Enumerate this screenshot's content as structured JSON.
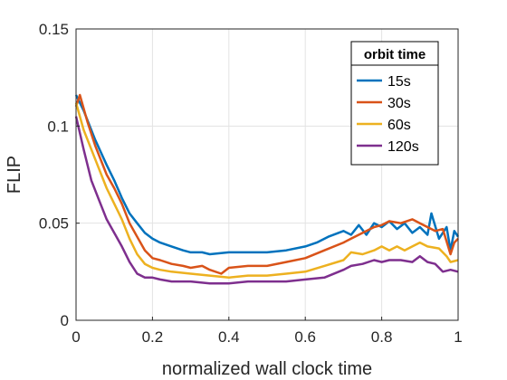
{
  "chart_data": {
    "type": "line",
    "title": "",
    "xlabel": "normalized wall clock time",
    "ylabel": "FLIP",
    "xlim": [
      0,
      1
    ],
    "ylim": [
      0,
      0.15
    ],
    "xticks": [
      0,
      0.2,
      0.4,
      0.6,
      0.8,
      1
    ],
    "xtick_labels": [
      "0",
      "0.2",
      "0.4",
      "0.6",
      "0.8",
      "1"
    ],
    "yticks": [
      0,
      0.05,
      0.1,
      0.15
    ],
    "ytick_labels": [
      "0",
      "0.05",
      "0.1",
      "0.15"
    ],
    "grid": true,
    "legend": {
      "title": "orbit time",
      "position": "top-right"
    },
    "series": [
      {
        "name": "15s",
        "color": "#0072BD",
        "points": [
          [
            0,
            0.116
          ],
          [
            0.02,
            0.108
          ],
          [
            0.05,
            0.093
          ],
          [
            0.08,
            0.08
          ],
          [
            0.1,
            0.072
          ],
          [
            0.12,
            0.063
          ],
          [
            0.14,
            0.055
          ],
          [
            0.16,
            0.05
          ],
          [
            0.18,
            0.045
          ],
          [
            0.2,
            0.042
          ],
          [
            0.22,
            0.04
          ],
          [
            0.25,
            0.038
          ],
          [
            0.28,
            0.036
          ],
          [
            0.3,
            0.035
          ],
          [
            0.33,
            0.035
          ],
          [
            0.35,
            0.034
          ],
          [
            0.4,
            0.035
          ],
          [
            0.45,
            0.035
          ],
          [
            0.5,
            0.035
          ],
          [
            0.55,
            0.036
          ],
          [
            0.6,
            0.038
          ],
          [
            0.63,
            0.04
          ],
          [
            0.66,
            0.043
          ],
          [
            0.7,
            0.046
          ],
          [
            0.72,
            0.044
          ],
          [
            0.74,
            0.049
          ],
          [
            0.76,
            0.044
          ],
          [
            0.78,
            0.05
          ],
          [
            0.8,
            0.048
          ],
          [
            0.82,
            0.051
          ],
          [
            0.84,
            0.047
          ],
          [
            0.86,
            0.05
          ],
          [
            0.88,
            0.045
          ],
          [
            0.9,
            0.048
          ],
          [
            0.92,
            0.044
          ],
          [
            0.93,
            0.055
          ],
          [
            0.95,
            0.042
          ],
          [
            0.97,
            0.048
          ],
          [
            0.98,
            0.036
          ],
          [
            0.99,
            0.046
          ],
          [
            1,
            0.043
          ]
        ]
      },
      {
        "name": "30s",
        "color": "#D95319",
        "points": [
          [
            0,
            0.11
          ],
          [
            0.01,
            0.116
          ],
          [
            0.03,
            0.102
          ],
          [
            0.05,
            0.09
          ],
          [
            0.08,
            0.075
          ],
          [
            0.1,
            0.068
          ],
          [
            0.12,
            0.06
          ],
          [
            0.14,
            0.05
          ],
          [
            0.16,
            0.043
          ],
          [
            0.18,
            0.036
          ],
          [
            0.2,
            0.032
          ],
          [
            0.22,
            0.031
          ],
          [
            0.25,
            0.029
          ],
          [
            0.28,
            0.028
          ],
          [
            0.3,
            0.027
          ],
          [
            0.33,
            0.028
          ],
          [
            0.35,
            0.026
          ],
          [
            0.38,
            0.024
          ],
          [
            0.4,
            0.027
          ],
          [
            0.45,
            0.028
          ],
          [
            0.5,
            0.028
          ],
          [
            0.55,
            0.03
          ],
          [
            0.6,
            0.032
          ],
          [
            0.65,
            0.036
          ],
          [
            0.7,
            0.04
          ],
          [
            0.72,
            0.042
          ],
          [
            0.75,
            0.045
          ],
          [
            0.78,
            0.048
          ],
          [
            0.8,
            0.049
          ],
          [
            0.82,
            0.051
          ],
          [
            0.85,
            0.05
          ],
          [
            0.88,
            0.052
          ],
          [
            0.9,
            0.05
          ],
          [
            0.92,
            0.048
          ],
          [
            0.94,
            0.046
          ],
          [
            0.96,
            0.047
          ],
          [
            0.98,
            0.034
          ],
          [
            0.99,
            0.04
          ],
          [
            1,
            0.042
          ]
        ]
      },
      {
        "name": "60s",
        "color": "#EDB120",
        "points": [
          [
            0,
            0.112
          ],
          [
            0.02,
            0.098
          ],
          [
            0.05,
            0.083
          ],
          [
            0.08,
            0.068
          ],
          [
            0.1,
            0.06
          ],
          [
            0.12,
            0.052
          ],
          [
            0.14,
            0.042
          ],
          [
            0.16,
            0.034
          ],
          [
            0.18,
            0.029
          ],
          [
            0.2,
            0.027
          ],
          [
            0.22,
            0.026
          ],
          [
            0.25,
            0.025
          ],
          [
            0.3,
            0.024
          ],
          [
            0.35,
            0.023
          ],
          [
            0.4,
            0.022
          ],
          [
            0.45,
            0.023
          ],
          [
            0.5,
            0.023
          ],
          [
            0.55,
            0.024
          ],
          [
            0.6,
            0.025
          ],
          [
            0.65,
            0.028
          ],
          [
            0.7,
            0.031
          ],
          [
            0.72,
            0.035
          ],
          [
            0.75,
            0.034
          ],
          [
            0.78,
            0.036
          ],
          [
            0.8,
            0.038
          ],
          [
            0.82,
            0.036
          ],
          [
            0.84,
            0.038
          ],
          [
            0.86,
            0.036
          ],
          [
            0.88,
            0.038
          ],
          [
            0.9,
            0.04
          ],
          [
            0.92,
            0.038
          ],
          [
            0.95,
            0.037
          ],
          [
            0.97,
            0.033
          ],
          [
            0.98,
            0.03
          ],
          [
            1,
            0.031
          ]
        ]
      },
      {
        "name": "120s",
        "color": "#7E2F8E",
        "points": [
          [
            0,
            0.105
          ],
          [
            0.02,
            0.088
          ],
          [
            0.04,
            0.072
          ],
          [
            0.06,
            0.062
          ],
          [
            0.08,
            0.052
          ],
          [
            0.1,
            0.045
          ],
          [
            0.12,
            0.038
          ],
          [
            0.14,
            0.03
          ],
          [
            0.16,
            0.024
          ],
          [
            0.18,
            0.022
          ],
          [
            0.2,
            0.022
          ],
          [
            0.22,
            0.021
          ],
          [
            0.25,
            0.02
          ],
          [
            0.3,
            0.02
          ],
          [
            0.35,
            0.019
          ],
          [
            0.4,
            0.019
          ],
          [
            0.45,
            0.02
          ],
          [
            0.5,
            0.02
          ],
          [
            0.55,
            0.02
          ],
          [
            0.6,
            0.021
          ],
          [
            0.65,
            0.022
          ],
          [
            0.7,
            0.026
          ],
          [
            0.72,
            0.028
          ],
          [
            0.75,
            0.029
          ],
          [
            0.78,
            0.031
          ],
          [
            0.8,
            0.03
          ],
          [
            0.82,
            0.031
          ],
          [
            0.85,
            0.031
          ],
          [
            0.88,
            0.03
          ],
          [
            0.9,
            0.033
          ],
          [
            0.92,
            0.03
          ],
          [
            0.94,
            0.029
          ],
          [
            0.96,
            0.025
          ],
          [
            0.98,
            0.026
          ],
          [
            1,
            0.025
          ]
        ]
      }
    ]
  }
}
